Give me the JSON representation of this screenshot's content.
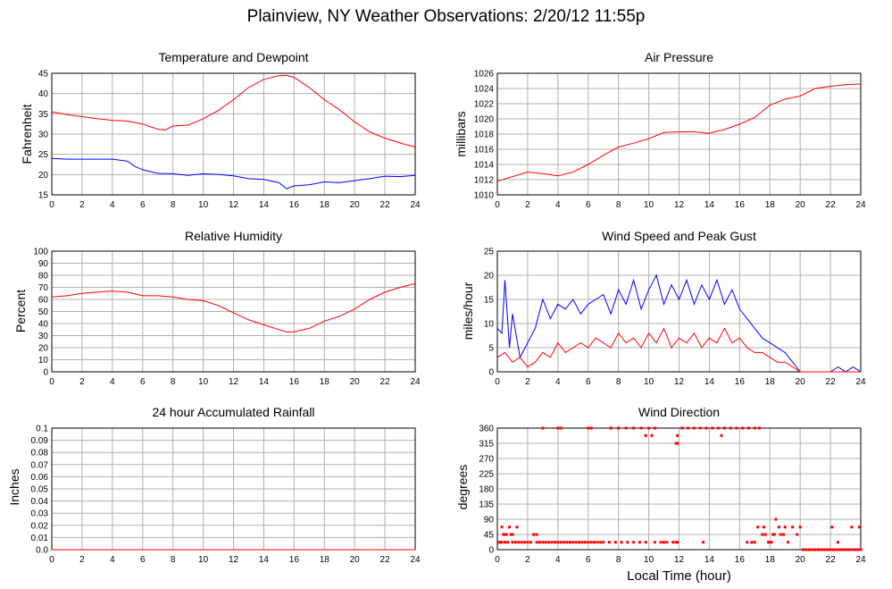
{
  "title": "Plainview, NY Weather Observations: 2/20/12 11:55p",
  "xaxis_label": "Local Time (hour)",
  "colors": {
    "series_red": "#ff0000",
    "series_blue": "#0000ff",
    "grid": "#b0b0b0"
  },
  "chart_data": [
    {
      "id": "temperature",
      "type": "line",
      "title": "Temperature and Dewpoint",
      "ylabel": "Fahrenheit",
      "xlim": [
        0,
        24
      ],
      "ylim": [
        15,
        45
      ],
      "xticks": [
        0,
        2,
        4,
        6,
        8,
        10,
        12,
        14,
        16,
        18,
        20,
        22,
        24
      ],
      "yticks": [
        "15",
        "20",
        "25",
        "30",
        "35",
        "40",
        "45"
      ],
      "series": [
        {
          "color": "#ff0000",
          "x": [
            0,
            1,
            2,
            3,
            4,
            5,
            6,
            7,
            7.5,
            8,
            9,
            10,
            11,
            12,
            13,
            14,
            15,
            15.5,
            16,
            17,
            18,
            19,
            20,
            21,
            22,
            23,
            24
          ],
          "values": [
            35.5,
            34.8,
            34.3,
            33.8,
            33.4,
            33.2,
            32.5,
            31.2,
            31.0,
            32.0,
            32.2,
            33.8,
            35.8,
            38.5,
            41.5,
            43.5,
            44.4,
            44.5,
            44.0,
            41.5,
            38.5,
            36.0,
            33.0,
            30.5,
            29.0,
            27.8,
            26.8
          ]
        },
        {
          "color": "#0000ff",
          "x": [
            0,
            1,
            2,
            3,
            4,
            5,
            5.5,
            6,
            7,
            8,
            9,
            10,
            11,
            12,
            13,
            14,
            15,
            15.5,
            16,
            17,
            18,
            19,
            20,
            21,
            22,
            23,
            24
          ],
          "values": [
            24.0,
            23.8,
            23.8,
            23.8,
            23.8,
            23.3,
            22.0,
            21.2,
            20.3,
            20.2,
            19.8,
            20.2,
            20.0,
            19.7,
            19.0,
            18.8,
            18.0,
            16.5,
            17.2,
            17.5,
            18.2,
            18.0,
            18.5,
            19.0,
            19.6,
            19.5,
            19.8
          ]
        }
      ]
    },
    {
      "id": "pressure",
      "type": "line",
      "title": "Air Pressure",
      "ylabel": "millibars",
      "xlim": [
        0,
        24
      ],
      "ylim": [
        1010,
        1026
      ],
      "xticks": [
        0,
        2,
        4,
        6,
        8,
        10,
        12,
        14,
        16,
        18,
        20,
        22,
        24
      ],
      "yticks": [
        "1010",
        "1012",
        "1014",
        "1016",
        "1018",
        "1020",
        "1022",
        "1024",
        "1026"
      ],
      "series": [
        {
          "color": "#ff0000",
          "x": [
            0,
            1,
            2,
            3,
            4,
            5,
            6,
            7,
            8,
            9,
            10,
            11,
            12,
            13,
            14,
            15,
            16,
            17,
            18,
            19,
            20,
            21,
            22,
            23,
            24
          ],
          "values": [
            1011.8,
            1012.4,
            1013.0,
            1012.8,
            1012.5,
            1013.0,
            1014.0,
            1015.2,
            1016.3,
            1016.8,
            1017.4,
            1018.2,
            1018.3,
            1018.3,
            1018.1,
            1018.6,
            1019.3,
            1020.2,
            1021.8,
            1022.6,
            1023.0,
            1024.0,
            1024.3,
            1024.5,
            1024.6
          ]
        }
      ]
    },
    {
      "id": "humidity",
      "type": "line",
      "title": "Relative Humidity",
      "ylabel": "Percent",
      "xlim": [
        0,
        24
      ],
      "ylim": [
        0,
        100
      ],
      "xticks": [
        0,
        2,
        4,
        6,
        8,
        10,
        12,
        14,
        16,
        18,
        20,
        22,
        24
      ],
      "yticks": [
        "0",
        "10",
        "20",
        "30",
        "40",
        "50",
        "60",
        "70",
        "80",
        "90",
        "100"
      ],
      "series": [
        {
          "color": "#ff0000",
          "x": [
            0,
            1,
            2,
            3,
            4,
            5,
            6,
            7,
            8,
            9,
            10,
            11,
            12,
            13,
            14,
            15,
            15.5,
            16,
            17,
            18,
            19,
            20,
            21,
            22,
            23,
            24
          ],
          "values": [
            62,
            63,
            65,
            66,
            67,
            66,
            63,
            63,
            62,
            60,
            59,
            55,
            49,
            43,
            39,
            35,
            33,
            33,
            36,
            42,
            46,
            52,
            60,
            66,
            70,
            73
          ]
        }
      ]
    },
    {
      "id": "wind-speed",
      "type": "line",
      "title": "Wind Speed and Peak Gust",
      "ylabel": "miles/hour",
      "xlim": [
        0,
        24
      ],
      "ylim": [
        0,
        25
      ],
      "xticks": [
        0,
        2,
        4,
        6,
        8,
        10,
        12,
        14,
        16,
        18,
        20,
        22,
        24
      ],
      "yticks": [
        "0",
        "5",
        "10",
        "15",
        "20",
        "25"
      ],
      "series": [
        {
          "color": "#0000ff",
          "x": [
            0,
            0.3,
            0.5,
            0.8,
            1,
            1.5,
            2,
            2.5,
            3,
            3.5,
            4,
            4.5,
            5,
            5.5,
            6,
            6.5,
            7,
            7.5,
            8,
            8.5,
            9,
            9.5,
            10,
            10.5,
            11,
            11.5,
            12,
            12.5,
            13,
            13.5,
            14,
            14.5,
            15,
            15.5,
            16,
            16.5,
            17,
            17.5,
            18,
            18.5,
            19,
            19.5,
            20,
            20.5,
            21,
            21.5,
            22,
            22.5,
            23,
            23.5,
            24
          ],
          "values": [
            9,
            8,
            19,
            5,
            12,
            3,
            6,
            9,
            15,
            11,
            14,
            13,
            15,
            12,
            14,
            15,
            16,
            12,
            17,
            14,
            19,
            13,
            17,
            20,
            14,
            18,
            15,
            19,
            14,
            18,
            15,
            19,
            14,
            17,
            13,
            11,
            9,
            7,
            6,
            5,
            4,
            2,
            0,
            0,
            0,
            0,
            0,
            1,
            0,
            1,
            0
          ]
        },
        {
          "color": "#ff0000",
          "x": [
            0,
            0.5,
            1,
            1.5,
            2,
            2.5,
            3,
            3.5,
            4,
            4.5,
            5,
            5.5,
            6,
            6.5,
            7,
            7.5,
            8,
            8.5,
            9,
            9.5,
            10,
            10.5,
            11,
            11.5,
            12,
            12.5,
            13,
            13.5,
            14,
            14.5,
            15,
            15.5,
            16,
            16.5,
            17,
            17.5,
            18,
            18.5,
            19,
            19.5,
            20,
            21,
            22,
            23,
            24
          ],
          "values": [
            3,
            4,
            2,
            3,
            1,
            2,
            4,
            3,
            6,
            4,
            5,
            6,
            5,
            7,
            6,
            5,
            8,
            6,
            7,
            5,
            8,
            6,
            9,
            5,
            7,
            6,
            8,
            5,
            7,
            6,
            9,
            6,
            7,
            5,
            4,
            4,
            3,
            2,
            2,
            1,
            0,
            0,
            0,
            0,
            0
          ]
        }
      ]
    },
    {
      "id": "rainfall",
      "type": "line",
      "title": "24 hour Accumulated Rainfall",
      "ylabel": "Inches",
      "xlim": [
        0,
        24
      ],
      "ylim": [
        0,
        0.1
      ],
      "xticks": [
        0,
        2,
        4,
        6,
        8,
        10,
        12,
        14,
        16,
        18,
        20,
        22,
        24
      ],
      "yticks": [
        "0.0",
        "0.01",
        "0.02",
        "0.03",
        "0.04",
        "0.05",
        "0.06",
        "0.07",
        "0.08",
        "0.09",
        "0.1"
      ],
      "series": [
        {
          "color": "#ff0000",
          "x": [
            0,
            24
          ],
          "values": [
            0,
            0
          ]
        }
      ]
    },
    {
      "id": "wind-direction",
      "type": "scatter",
      "title": "Wind Direction",
      "ylabel": "degrees",
      "xlim": [
        0,
        24
      ],
      "ylim": [
        0,
        360
      ],
      "xticks": [
        0,
        2,
        4,
        6,
        8,
        10,
        12,
        14,
        16,
        18,
        20,
        22,
        24
      ],
      "yticks": [
        "0",
        "45",
        "90",
        "135",
        "180",
        "225",
        "270",
        "315",
        "360"
      ],
      "series": [
        {
          "color": "#ff0000",
          "x": [
            0.1,
            0.2,
            0.3,
            0.4,
            0.5,
            0.6,
            0.7,
            0.9,
            1.0,
            1.2,
            1.4,
            1.6,
            1.8,
            2.0,
            2.2,
            2.4,
            2.6,
            2.8,
            3.0,
            3.2,
            3.4,
            3.6,
            3.8,
            4.0,
            4.2,
            4.4,
            4.6,
            4.8,
            5.0,
            5.2,
            5.4,
            5.6,
            5.8,
            6.0,
            6.2,
            6.4,
            6.6,
            6.8,
            7.0,
            7.4,
            7.8,
            8.2,
            8.6,
            9.0,
            9.4,
            9.8,
            10.4,
            10.8,
            11.0,
            11.2,
            11.6,
            11.8,
            11.9,
            12.2,
            12.6,
            13.0,
            13.4,
            13.8,
            14.2,
            14.6,
            15.0,
            15.4,
            15.8,
            16.2,
            16.6,
            17.0,
            17.3,
            0.3,
            0.8,
            1.3,
            2.6,
            3.0,
            0.5,
            1.0,
            4.0,
            4.2,
            6.0,
            6.2,
            7.5,
            8.0,
            8.5,
            9.0,
            9.5,
            10.0,
            10.4,
            11.9,
            13.0,
            13.6,
            14.8,
            9.8,
            10.2,
            11.8,
            11.9,
            16.5,
            17.0,
            17.5,
            18.0,
            18.3,
            18.6,
            19.0,
            19.5,
            20.0,
            17.2,
            17.7,
            18.2,
            18.7,
            19.2,
            19.8,
            16.8,
            17.6,
            18.1,
            18.4,
            18.9,
            17.9,
            20.2,
            20.4,
            20.6,
            20.8,
            21.0,
            21.2,
            21.4,
            21.6,
            21.8,
            22.0,
            22.2,
            22.4,
            22.6,
            22.8,
            23.0,
            23.2,
            23.4,
            23.6,
            23.8,
            24.0,
            22.1,
            22.5,
            23.4,
            23.9
          ],
          "values": [
            22,
            22,
            22,
            45,
            22,
            45,
            22,
            45,
            22,
            22,
            22,
            22,
            22,
            22,
            22,
            45,
            22,
            22,
            22,
            22,
            22,
            22,
            22,
            22,
            22,
            22,
            22,
            22,
            22,
            22,
            22,
            22,
            22,
            22,
            22,
            22,
            22,
            22,
            22,
            22,
            22,
            22,
            22,
            22,
            22,
            22,
            22,
            22,
            22,
            22,
            22,
            22,
            22,
            360,
            360,
            360,
            360,
            360,
            360,
            360,
            360,
            360,
            360,
            360,
            360,
            360,
            360,
            67,
            67,
            67,
            45,
            360,
            45,
            45,
            360,
            360,
            360,
            360,
            360,
            360,
            360,
            360,
            360,
            360,
            360,
            315,
            360,
            22,
            338,
            338,
            338,
            315,
            338,
            22,
            22,
            45,
            22,
            45,
            67,
            67,
            67,
            67,
            67,
            45,
            45,
            45,
            22,
            45,
            22,
            67,
            22,
            90,
            45,
            22,
            0,
            0,
            0,
            0,
            0,
            0,
            0,
            0,
            0,
            0,
            0,
            0,
            0,
            0,
            0,
            0,
            0,
            0,
            0,
            0,
            67,
            22,
            67,
            67
          ]
        }
      ]
    }
  ]
}
